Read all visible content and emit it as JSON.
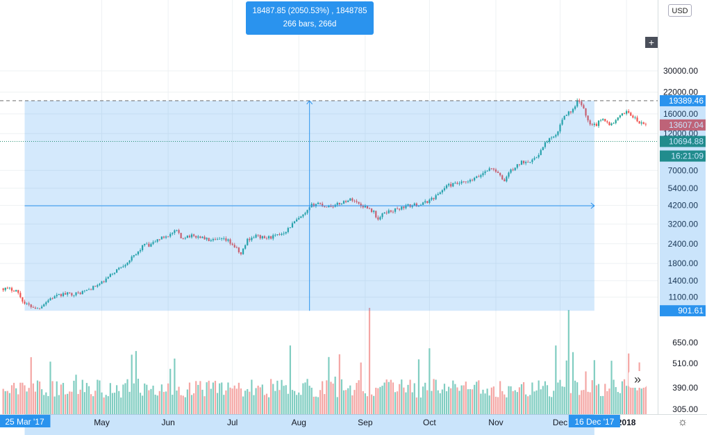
{
  "chart_data": {
    "type": "candlestick",
    "instrument_currency": "USD",
    "y_scale": "log",
    "ylim": [
      800,
      31000
    ],
    "price_ticks": [
      {
        "label": "30000.00",
        "value": 30000
      },
      {
        "label": "22000.00",
        "value": 22000
      },
      {
        "label": "16000.00",
        "value": 16000
      },
      {
        "label": "12000.00",
        "value": 12000
      },
      {
        "label": "7000.00",
        "value": 7000
      },
      {
        "label": "5400.00",
        "value": 5400
      },
      {
        "label": "4200.00",
        "value": 4200
      },
      {
        "label": "3200.00",
        "value": 3200
      },
      {
        "label": "2400.00",
        "value": 2400
      },
      {
        "label": "1800.00",
        "value": 1800
      },
      {
        "label": "1400.00",
        "value": 1400
      },
      {
        "label": "1100.00",
        "value": 1100
      }
    ],
    "volume_ticks": [
      "650.00",
      "510.00",
      "390.00",
      "305.00"
    ],
    "time_ticks": [
      {
        "label": "May",
        "day": 36
      },
      {
        "label": "Jun",
        "day": 67
      },
      {
        "label": "Jul",
        "day": 97
      },
      {
        "label": "Aug",
        "day": 128
      },
      {
        "label": "Sep",
        "day": 159
      },
      {
        "label": "Oct",
        "day": 189
      },
      {
        "label": "Nov",
        "day": 220
      },
      {
        "label": "Dec",
        "day": 250
      },
      {
        "label": "2018",
        "day": 281
      }
    ],
    "price_anchors": [
      [
        -10,
        1250
      ],
      [
        -4,
        1220
      ],
      [
        0,
        1000
      ],
      [
        6,
        930
      ],
      [
        12,
        1080
      ],
      [
        18,
        1150
      ],
      [
        25,
        1160
      ],
      [
        30,
        1230
      ],
      [
        36,
        1350
      ],
      [
        42,
        1600
      ],
      [
        47,
        1800
      ],
      [
        52,
        2050
      ],
      [
        56,
        2400
      ],
      [
        58,
        2300
      ],
      [
        62,
        2550
      ],
      [
        68,
        2750
      ],
      [
        71,
        2900
      ],
      [
        73,
        2600
      ],
      [
        76,
        2700
      ],
      [
        82,
        2650
      ],
      [
        87,
        2500
      ],
      [
        92,
        2550
      ],
      [
        95,
        2500
      ],
      [
        98,
        2300
      ],
      [
        101,
        2050
      ],
      [
        104,
        2550
      ],
      [
        108,
        2700
      ],
      [
        112,
        2600
      ],
      [
        118,
        2700
      ],
      [
        122,
        2900
      ],
      [
        126,
        3300
      ],
      [
        131,
        3700
      ],
      [
        134,
        4200
      ],
      [
        137,
        4350
      ],
      [
        140,
        4150
      ],
      [
        145,
        4200
      ],
      [
        150,
        4500
      ],
      [
        153,
        4600
      ],
      [
        157,
        4200
      ],
      [
        160,
        4100
      ],
      [
        163,
        3800
      ],
      [
        165,
        3400
      ],
      [
        168,
        3800
      ],
      [
        172,
        3900
      ],
      [
        178,
        4150
      ],
      [
        186,
        4300
      ],
      [
        192,
        4800
      ],
      [
        197,
        5600
      ],
      [
        203,
        5800
      ],
      [
        207,
        5900
      ],
      [
        212,
        6400
      ],
      [
        216,
        7100
      ],
      [
        219,
        7200
      ],
      [
        222,
        6400
      ],
      [
        224,
        6000
      ],
      [
        226,
        6800
      ],
      [
        232,
        7900
      ],
      [
        238,
        8200
      ],
      [
        242,
        9800
      ],
      [
        244,
        10900
      ],
      [
        248,
        11500
      ],
      [
        250,
        13500
      ],
      [
        252,
        15900
      ],
      [
        255,
        16500
      ],
      [
        257,
        17500
      ],
      [
        258,
        19200
      ],
      [
        260,
        18500
      ],
      [
        262,
        15500
      ],
      [
        264,
        14000
      ],
      [
        267,
        13700
      ],
      [
        270,
        15200
      ],
      [
        273,
        13500
      ],
      [
        276,
        14500
      ],
      [
        279,
        15800
      ],
      [
        281,
        16800
      ],
      [
        284,
        15300
      ],
      [
        287,
        14000
      ],
      [
        290,
        13600
      ]
    ],
    "volume_spikes": [
      [
        161,
        960
      ],
      [
        254,
        940
      ],
      [
        124,
        620
      ],
      [
        256,
        560
      ],
      [
        52,
        570
      ],
      [
        248,
        620
      ]
    ],
    "measure": {
      "start_day": 0,
      "end_day": 266,
      "low_price": 901.61,
      "high_price": 19389.46,
      "change_value": "18487.85 (2050.53%) , 1848785",
      "range_text": "266 bars, 266d",
      "start_date": "25 Mar '17",
      "end_date": "16 Dec '17",
      "high_label": "19389.46",
      "low_label": "901.61"
    },
    "current_price": {
      "label": "13607.04",
      "value": 13607.04
    },
    "reference_price": {
      "label": "10694.88",
      "value": 10694.88
    },
    "countdown": "16:21:09",
    "colors": {
      "up": "#26a69a",
      "down": "#ef5350",
      "measure": "#2a93ee",
      "measure_fill": "rgba(42,147,238,0.2)",
      "ref": "#1e8a6d"
    }
  },
  "ui": {
    "currency_button": "USD",
    "forward_icon": "»",
    "crosshair_icon": "+",
    "settings_icon": "☼"
  }
}
